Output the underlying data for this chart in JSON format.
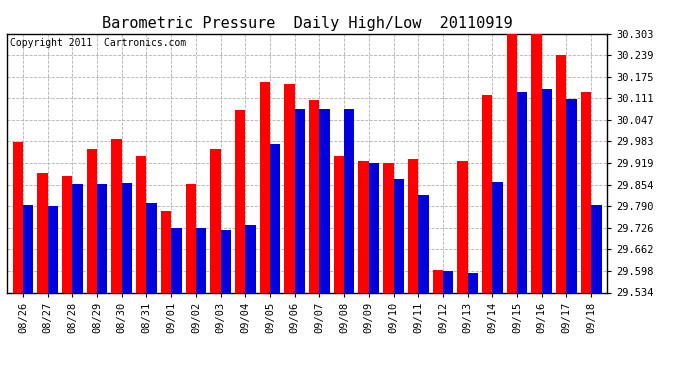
{
  "title": "Barometric Pressure  Daily High/Low  20110919",
  "copyright": "Copyright 2011  Cartronics.com",
  "dates": [
    "08/26",
    "08/27",
    "08/28",
    "08/29",
    "08/30",
    "08/31",
    "09/01",
    "09/02",
    "09/03",
    "09/04",
    "09/05",
    "09/06",
    "09/07",
    "09/08",
    "09/09",
    "09/10",
    "09/11",
    "09/12",
    "09/13",
    "09/14",
    "09/15",
    "09/16",
    "09/17",
    "09/18"
  ],
  "highs": [
    29.98,
    29.89,
    29.88,
    29.96,
    29.99,
    29.94,
    29.775,
    29.855,
    29.96,
    30.075,
    30.16,
    30.155,
    30.105,
    29.94,
    29.925,
    29.92,
    29.93,
    29.6,
    29.925,
    30.12,
    30.31,
    30.305,
    30.24,
    30.13
  ],
  "lows": [
    29.795,
    29.79,
    29.855,
    29.855,
    29.86,
    29.8,
    29.725,
    29.725,
    29.72,
    29.735,
    29.975,
    30.08,
    30.08,
    30.08,
    29.92,
    29.87,
    29.825,
    29.598,
    29.592,
    29.862,
    30.13,
    30.14,
    30.11,
    29.795
  ],
  "high_color": "#ff0000",
  "low_color": "#0000dd",
  "bg_color": "#ffffff",
  "grid_color": "#b0b0b0",
  "ylim_min": 29.534,
  "ylim_max": 30.303,
  "yticks": [
    29.534,
    29.598,
    29.662,
    29.726,
    29.79,
    29.854,
    29.919,
    29.983,
    30.047,
    30.111,
    30.175,
    30.239,
    30.303
  ],
  "title_fontsize": 11,
  "tick_fontsize": 7.5,
  "copyright_fontsize": 7
}
